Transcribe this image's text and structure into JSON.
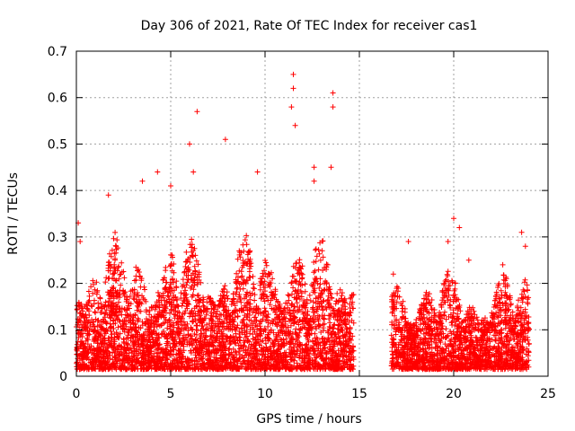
{
  "chart_data": {
    "type": "scatter",
    "title": "Day 306 of 2021, Rate Of TEC Index for receiver cas1",
    "xlabel": "GPS time / hours",
    "ylabel": "ROTI / TECUs",
    "xlim": [
      0,
      25
    ],
    "ylim": [
      0,
      0.7
    ],
    "xticks": [
      "0",
      "5",
      "10",
      "15",
      "20",
      "25"
    ],
    "yticks": [
      "0",
      "0.1",
      "0.2",
      "0.3",
      "0.4",
      "0.5",
      "0.6",
      "0.7"
    ],
    "grid": true,
    "marker": "+",
    "color": "#ff0000",
    "series": [
      {
        "name": "ROTI cas1",
        "note_ranges": [
          {
            "x_start": 0.0,
            "x_end": 14.7,
            "typical_max": 0.3
          },
          {
            "x_start": 16.7,
            "x_end": 24.0,
            "typical_max": 0.22
          }
        ],
        "outliers": [
          {
            "x": 0.1,
            "y": 0.33
          },
          {
            "x": 0.2,
            "y": 0.29
          },
          {
            "x": 1.7,
            "y": 0.39
          },
          {
            "x": 3.5,
            "y": 0.42
          },
          {
            "x": 4.3,
            "y": 0.44
          },
          {
            "x": 5.0,
            "y": 0.41
          },
          {
            "x": 6.0,
            "y": 0.5
          },
          {
            "x": 6.4,
            "y": 0.57
          },
          {
            "x": 6.2,
            "y": 0.44
          },
          {
            "x": 7.9,
            "y": 0.51
          },
          {
            "x": 9.6,
            "y": 0.44
          },
          {
            "x": 11.5,
            "y": 0.65
          },
          {
            "x": 11.5,
            "y": 0.62
          },
          {
            "x": 11.4,
            "y": 0.58
          },
          {
            "x": 11.6,
            "y": 0.54
          },
          {
            "x": 12.6,
            "y": 0.45
          },
          {
            "x": 12.6,
            "y": 0.42
          },
          {
            "x": 13.6,
            "y": 0.61
          },
          {
            "x": 13.6,
            "y": 0.58
          },
          {
            "x": 13.5,
            "y": 0.45
          },
          {
            "x": 16.8,
            "y": 0.22
          },
          {
            "x": 17.6,
            "y": 0.29
          },
          {
            "x": 19.7,
            "y": 0.29
          },
          {
            "x": 20.0,
            "y": 0.34
          },
          {
            "x": 20.3,
            "y": 0.32
          },
          {
            "x": 20.8,
            "y": 0.25
          },
          {
            "x": 22.6,
            "y": 0.24
          },
          {
            "x": 23.6,
            "y": 0.31
          },
          {
            "x": 23.8,
            "y": 0.28
          }
        ]
      }
    ]
  }
}
